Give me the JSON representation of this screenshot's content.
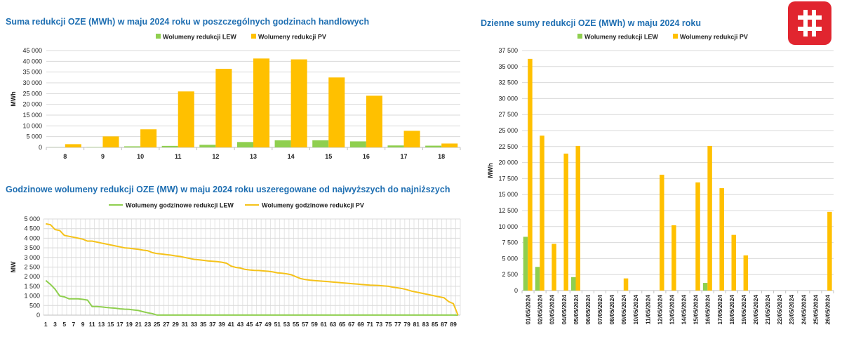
{
  "colors": {
    "lew": "#8fcf4f",
    "pv": "#ffc000",
    "lew_line": "#8fcf4f",
    "pv_line": "#f5c21a",
    "title": "#1f6fb2",
    "logo": "#e1252f"
  },
  "logo": {
    "icon": "brand-mark-icon"
  },
  "chart_data": [
    {
      "type": "bar",
      "title": "Suma redukcji OZE (MWh) w maju 2024 roku w poszczególnych godzinach handlowych",
      "ylabel": "MWh",
      "xlabel": "",
      "ylim": [
        0,
        45000
      ],
      "yticks": [
        0,
        5000,
        10000,
        15000,
        20000,
        25000,
        30000,
        35000,
        40000,
        45000
      ],
      "ytick_labels": [
        "0",
        "5 000",
        "10 000",
        "15 000",
        "20 000",
        "25 000",
        "30 000",
        "35 000",
        "40 000",
        "45 000"
      ],
      "categories": [
        "8",
        "9",
        "10",
        "11",
        "12",
        "13",
        "14",
        "15",
        "16",
        "17",
        "18"
      ],
      "series": [
        {
          "name": "Wolumeny redukcji LEW",
          "values": [
            60,
            150,
            500,
            700,
            1200,
            2500,
            3300,
            3300,
            2800,
            900,
            800
          ]
        },
        {
          "name": "Wolumeny redukcji PV",
          "values": [
            1500,
            5100,
            8400,
            26000,
            36500,
            41300,
            40900,
            32500,
            24000,
            7700,
            1800
          ]
        }
      ],
      "grid": true,
      "legend": "top-center"
    },
    {
      "type": "line",
      "title": "Godzinowe wolumeny redukcji OZE (MW) w maju 2024 roku uszeregowane od najwyższych do najniższych",
      "ylabel": "MW",
      "xlabel": "",
      "ylim": [
        0,
        5000
      ],
      "yticks": [
        0,
        500,
        1000,
        1500,
        2000,
        2500,
        3000,
        3500,
        4000,
        4500,
        5000
      ],
      "ytick_labels": [
        "0",
        "500",
        "1 000",
        "1 500",
        "2 000",
        "2 500",
        "3 000",
        "3 500",
        "4 000",
        "4 500",
        "5 000"
      ],
      "x": [
        1,
        2,
        3,
        4,
        5,
        6,
        7,
        8,
        9,
        10,
        11,
        12,
        13,
        14,
        15,
        16,
        17,
        18,
        19,
        20,
        21,
        22,
        23,
        24,
        25,
        26,
        27,
        28,
        29,
        30,
        31,
        32,
        33,
        34,
        35,
        36,
        37,
        38,
        39,
        40,
        41,
        42,
        43,
        44,
        45,
        46,
        47,
        48,
        49,
        50,
        51,
        52,
        53,
        54,
        55,
        56,
        57,
        58,
        59,
        60,
        61,
        62,
        63,
        64,
        65,
        66,
        67,
        68,
        69,
        70,
        71,
        72,
        73,
        74,
        75,
        76,
        77,
        78,
        79,
        80,
        81,
        82,
        83,
        84,
        85,
        86,
        87,
        88,
        89,
        90
      ],
      "xtick_labels": [
        "1",
        "3",
        "5",
        "7",
        "9",
        "11",
        "13",
        "15",
        "17",
        "19",
        "21",
        "23",
        "25",
        "27",
        "29",
        "31",
        "33",
        "35",
        "37",
        "39",
        "41",
        "43",
        "45",
        "47",
        "49",
        "51",
        "53",
        "55",
        "57",
        "59",
        "61",
        "63",
        "65",
        "67",
        "69",
        "71",
        "73",
        "75",
        "77",
        "79",
        "81",
        "83",
        "85",
        "87",
        "89"
      ],
      "series": [
        {
          "name": "Wolumeny godzinowe redukcji LEW",
          "values": [
            1800,
            1600,
            1350,
            1000,
            950,
            850,
            850,
            850,
            820,
            780,
            450,
            450,
            430,
            400,
            380,
            360,
            330,
            310,
            300,
            270,
            240,
            180,
            120,
            80,
            5,
            5,
            5,
            5,
            5,
            5,
            5,
            5,
            5,
            5,
            5,
            5,
            5,
            5,
            5,
            5,
            5,
            5,
            5,
            5,
            5,
            5,
            5,
            5,
            5,
            5,
            5,
            5,
            5,
            5,
            5,
            5,
            5,
            5,
            5,
            5,
            5,
            5,
            5,
            5,
            5,
            5,
            5,
            5,
            5,
            5,
            5,
            5,
            5,
            5,
            5,
            5,
            5,
            5,
            5,
            5,
            5,
            5,
            5,
            5,
            5,
            5,
            5,
            5,
            5,
            0
          ]
        },
        {
          "name": "Wolumeny godzinowe redukcji PV",
          "values": [
            4750,
            4700,
            4450,
            4400,
            4150,
            4100,
            4050,
            4000,
            3950,
            3850,
            3850,
            3800,
            3750,
            3700,
            3650,
            3600,
            3550,
            3500,
            3480,
            3450,
            3420,
            3380,
            3350,
            3250,
            3200,
            3180,
            3150,
            3120,
            3080,
            3050,
            3000,
            2950,
            2900,
            2880,
            2850,
            2820,
            2800,
            2780,
            2750,
            2700,
            2550,
            2480,
            2450,
            2380,
            2350,
            2330,
            2320,
            2300,
            2280,
            2250,
            2200,
            2180,
            2150,
            2100,
            2000,
            1900,
            1850,
            1820,
            1800,
            1780,
            1760,
            1740,
            1720,
            1700,
            1680,
            1660,
            1640,
            1620,
            1600,
            1580,
            1560,
            1550,
            1540,
            1520,
            1500,
            1450,
            1420,
            1380,
            1320,
            1250,
            1200,
            1150,
            1100,
            1050,
            1000,
            950,
            900,
            700,
            600,
            0
          ]
        }
      ],
      "grid": true,
      "legend": "top-center"
    },
    {
      "type": "bar",
      "title": "Dzienne sumy redukcji OZE (MWh) w maju 2024 roku",
      "ylabel": "MWh",
      "xlabel": "",
      "ylim": [
        0,
        37500
      ],
      "yticks": [
        0,
        2500,
        5000,
        7500,
        10000,
        12500,
        15000,
        17500,
        20000,
        22500,
        25000,
        27500,
        30000,
        32500,
        35000,
        37500
      ],
      "ytick_labels": [
        "0",
        "2 500",
        "5 000",
        "7 500",
        "10 000",
        "12 500",
        "15 000",
        "17 500",
        "20 000",
        "22 500",
        "25 000",
        "27 500",
        "30 000",
        "32 500",
        "35 000",
        "37 500"
      ],
      "categories": [
        "01/05/2024",
        "02/05/2024",
        "03/05/2024",
        "04/05/2024",
        "05/05/2024",
        "06/05/2024",
        "07/05/2024",
        "08/05/2024",
        "09/05/2024",
        "10/05/2024",
        "11/05/2024",
        "12/05/2024",
        "13/05/2024",
        "14/05/2024",
        "15/05/2024",
        "16/05/2024",
        "17/05/2024",
        "18/05/2024",
        "19/05/2024",
        "20/05/2024",
        "21/05/2024",
        "22/05/2024",
        "23/05/2024",
        "24/05/2024",
        "25/05/2024",
        "26/05/2024"
      ],
      "series": [
        {
          "name": "Wolumeny redukcji LEW",
          "values": [
            8400,
            3700,
            0,
            0,
            2100,
            0,
            0,
            0,
            0,
            0,
            0,
            0,
            0,
            0,
            0,
            1200,
            0,
            0,
            0,
            0,
            0,
            0,
            0,
            0,
            0,
            0
          ]
        },
        {
          "name": "Wolumeny redukcji PV",
          "values": [
            36200,
            24200,
            7300,
            21400,
            22600,
            0,
            0,
            0,
            1900,
            0,
            0,
            18100,
            10200,
            0,
            16900,
            22600,
            16000,
            8700,
            5500,
            0,
            0,
            0,
            0,
            0,
            0,
            12300
          ]
        }
      ],
      "grid": true,
      "legend": "top-center"
    }
  ]
}
